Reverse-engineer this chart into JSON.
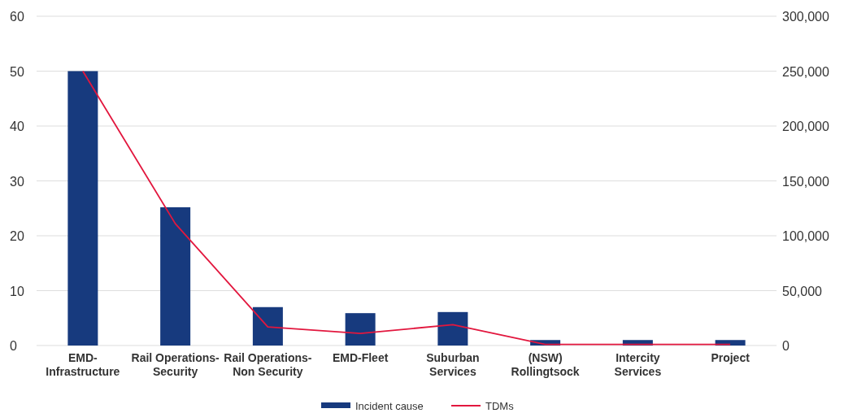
{
  "chart_data": {
    "type": "bar",
    "categories": [
      "EMD-\nInfrastructure",
      "Rail Operations-\nSecurity",
      "Rail Operations-\nNon Security",
      "EMD-Fleet",
      "Suburban\nServices",
      "(NSW)\nRollingtsock",
      "Intercity\nServices",
      "Project"
    ],
    "series": [
      {
        "name": "Incident cause",
        "color": "#173a7e",
        "values": [
          50,
          25.2,
          7,
          5.9,
          6.1,
          1,
          1,
          1
        ]
      },
      {
        "name": "TDMs",
        "type": "line",
        "axis": "y2",
        "color": "#e2173e",
        "values": [
          250000,
          111000,
          17000,
          11000,
          19000,
          1000,
          1000,
          1000
        ]
      }
    ],
    "ylim": [
      0,
      60
    ],
    "yticks": [
      0,
      10,
      20,
      30,
      40,
      50,
      60
    ],
    "y2lim": [
      0,
      300000
    ],
    "y2ticks": [
      {
        "value": 0,
        "label": "0"
      },
      {
        "value": 50000,
        "label": "50,000"
      },
      {
        "value": 100000,
        "label": "100,000"
      },
      {
        "value": 150000,
        "label": "150,000"
      },
      {
        "value": 200000,
        "label": "200,000"
      },
      {
        "value": 250000,
        "label": "250,000"
      },
      {
        "value": 300000,
        "label": "300,000"
      }
    ],
    "grid": "y",
    "legend": "bottom"
  }
}
